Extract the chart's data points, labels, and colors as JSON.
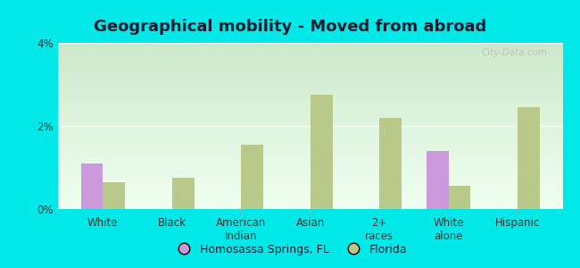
{
  "title": "Geographical mobility - Moved from abroad",
  "categories": [
    "White",
    "Black",
    "American\nIndian",
    "Asian",
    "2+\nraces",
    "White\nalone",
    "Hispanic"
  ],
  "homosassa_values": [
    1.1,
    0.0,
    0.0,
    0.0,
    0.0,
    1.4,
    0.0
  ],
  "florida_values": [
    0.65,
    0.75,
    1.55,
    2.75,
    2.2,
    0.55,
    2.45
  ],
  "homosassa_color": "#cc99dd",
  "florida_color": "#b8c98a",
  "background_outer": "#00e8e8",
  "grad_top": "#cce8cc",
  "grad_bottom": "#f0fff0",
  "ylim": [
    0,
    4.0
  ],
  "yticks": [
    0,
    2,
    4
  ],
  "ytick_labels": [
    "0%",
    "2%",
    "4%"
  ],
  "bar_width": 0.32,
  "legend_labels": [
    "Homosassa Springs, FL",
    "Florida"
  ],
  "watermark": "City-Data.com",
  "title_fontsize": 13,
  "tick_fontsize": 8.5
}
